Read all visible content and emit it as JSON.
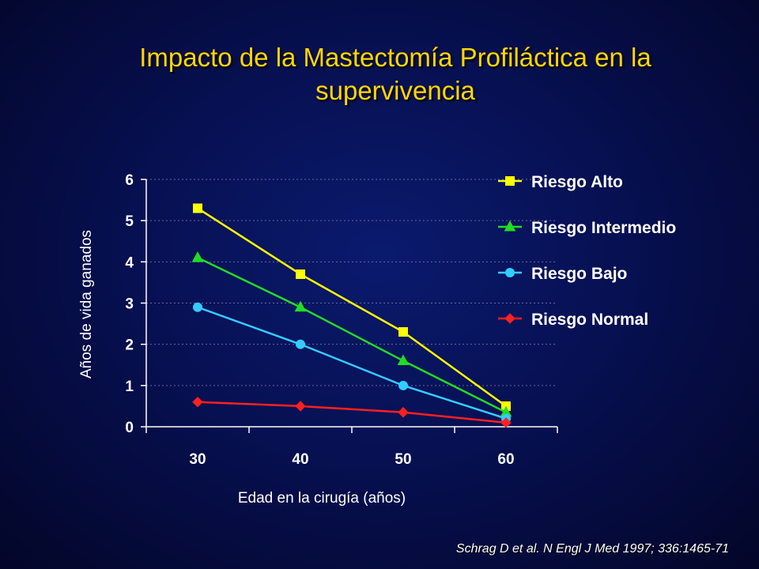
{
  "slide": {
    "title": "Impacto de la Mastectomía Profiláctica en la supervivencia",
    "citation": "Schrag D et al. N Engl J Med 1997; 336:1465-71"
  },
  "colors": {
    "title": "#ffd700",
    "text": "#ffffff",
    "axis": "#ffffff",
    "grid": "#6a6a9a"
  },
  "chart_data": {
    "type": "line",
    "title": "",
    "xlabel": "Edad en la cirugía (años)",
    "ylabel": "Años de vida ganados",
    "categories": [
      "30",
      "40",
      "50",
      "60"
    ],
    "ylim": [
      0,
      6
    ],
    "yticks": [
      0,
      1,
      2,
      3,
      4,
      5,
      6
    ],
    "grid": true,
    "legend_position": "right",
    "series": [
      {
        "name": "Riesgo Alto",
        "values": [
          5.3,
          3.7,
          2.3,
          0.5
        ],
        "color": "#ffff00",
        "marker": "square"
      },
      {
        "name": "Riesgo Intermedio",
        "values": [
          4.1,
          2.9,
          1.6,
          0.35
        ],
        "color": "#22dd22",
        "marker": "triangle"
      },
      {
        "name": "Riesgo Bajo",
        "values": [
          2.9,
          2.0,
          1.0,
          0.2
        ],
        "color": "#33ccff",
        "marker": "circle"
      },
      {
        "name": "Riesgo Normal",
        "values": [
          0.6,
          0.5,
          0.35,
          0.1
        ],
        "color": "#ff2020",
        "marker": "diamond"
      }
    ]
  }
}
